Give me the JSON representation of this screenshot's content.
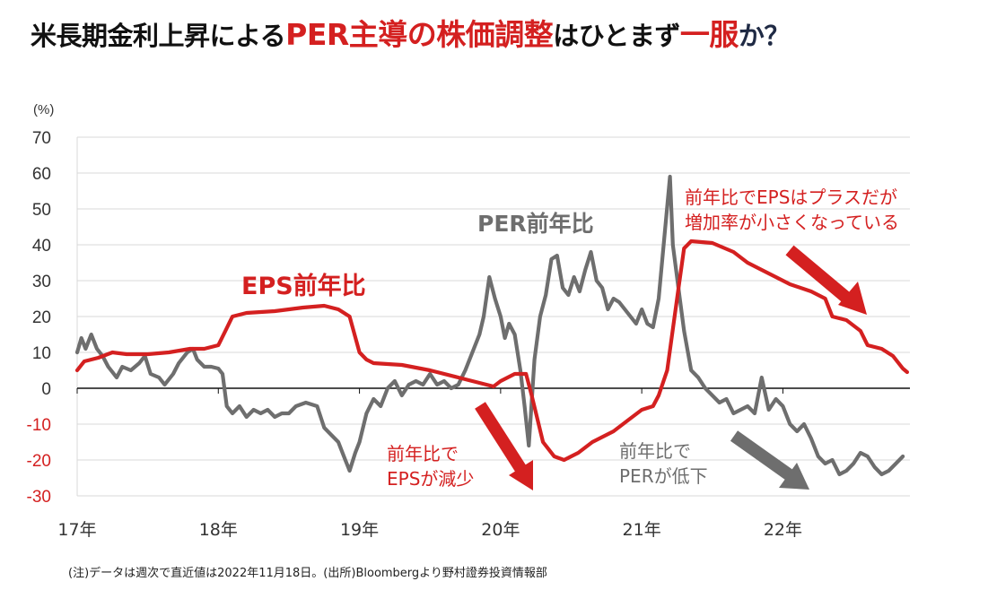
{
  "title": {
    "part1": "米長期金利上昇による",
    "part2": "PER主導の株価調整",
    "part3": "はひとまず",
    "part4": "一服",
    "part5": "か？"
  },
  "footnote": "(注)データは週次で直近値は2022年11月18日。(出所)Bloombergより野村證券投資情報部",
  "colors": {
    "eps": "#d42020",
    "per": "#6e6e6e",
    "negative_tick": "#d42020",
    "grid": "#d9d9d9"
  },
  "chart_data": {
    "type": "line",
    "ylabel": "(%)",
    "ylim": [
      -30,
      70
    ],
    "yticks": [
      "70",
      "60",
      "50",
      "40",
      "30",
      "20",
      "10",
      "0",
      "-10",
      "-20",
      "-30"
    ],
    "xlim": [
      2017.0,
      2022.9
    ],
    "xticks": [
      "17年",
      "18年",
      "19年",
      "20年",
      "21年",
      "22年"
    ],
    "grid": true,
    "series": [
      {
        "name": "EPS前年比",
        "points": [
          [
            2017.0,
            5
          ],
          [
            2017.05,
            7.5
          ],
          [
            2017.15,
            8.5
          ],
          [
            2017.25,
            10
          ],
          [
            2017.35,
            9.5
          ],
          [
            2017.5,
            9.5
          ],
          [
            2017.65,
            10
          ],
          [
            2017.8,
            11
          ],
          [
            2017.9,
            11
          ],
          [
            2018.0,
            12
          ],
          [
            2018.05,
            16
          ],
          [
            2018.1,
            20
          ],
          [
            2018.2,
            21
          ],
          [
            2018.4,
            21.5
          ],
          [
            2018.6,
            22.5
          ],
          [
            2018.75,
            23
          ],
          [
            2018.85,
            22
          ],
          [
            2018.93,
            20
          ],
          [
            2019.0,
            10
          ],
          [
            2019.05,
            8
          ],
          [
            2019.1,
            7
          ],
          [
            2019.3,
            6.5
          ],
          [
            2019.5,
            5
          ],
          [
            2019.7,
            3
          ],
          [
            2019.8,
            2
          ],
          [
            2019.9,
            1
          ],
          [
            2019.95,
            0.5
          ],
          [
            2020.0,
            2
          ],
          [
            2020.1,
            4
          ],
          [
            2020.18,
            4
          ],
          [
            2020.22,
            -2
          ],
          [
            2020.3,
            -15
          ],
          [
            2020.38,
            -19
          ],
          [
            2020.45,
            -20
          ],
          [
            2020.55,
            -18
          ],
          [
            2020.65,
            -15
          ],
          [
            2020.8,
            -12
          ],
          [
            2020.9,
            -9
          ],
          [
            2021.0,
            -6
          ],
          [
            2021.08,
            -5
          ],
          [
            2021.12,
            -2
          ],
          [
            2021.18,
            5
          ],
          [
            2021.25,
            25
          ],
          [
            2021.3,
            39
          ],
          [
            2021.35,
            41
          ],
          [
            2021.5,
            40.5
          ],
          [
            2021.65,
            38
          ],
          [
            2021.75,
            35
          ],
          [
            2021.85,
            33
          ],
          [
            2021.95,
            31
          ],
          [
            2022.05,
            29
          ],
          [
            2022.2,
            27
          ],
          [
            2022.3,
            25
          ],
          [
            2022.35,
            20
          ],
          [
            2022.45,
            19
          ],
          [
            2022.55,
            16
          ],
          [
            2022.6,
            12
          ],
          [
            2022.7,
            11
          ],
          [
            2022.78,
            9
          ],
          [
            2022.85,
            5.5
          ],
          [
            2022.88,
            4.5
          ]
        ]
      },
      {
        "name": "PER前年比",
        "points": [
          [
            2017.0,
            10
          ],
          [
            2017.03,
            14
          ],
          [
            2017.06,
            11
          ],
          [
            2017.1,
            15
          ],
          [
            2017.14,
            11
          ],
          [
            2017.18,
            9
          ],
          [
            2017.22,
            6
          ],
          [
            2017.26,
            4
          ],
          [
            2017.28,
            3
          ],
          [
            2017.32,
            6
          ],
          [
            2017.38,
            5
          ],
          [
            2017.44,
            7
          ],
          [
            2017.48,
            9
          ],
          [
            2017.52,
            4
          ],
          [
            2017.58,
            3
          ],
          [
            2017.62,
            1
          ],
          [
            2017.68,
            4
          ],
          [
            2017.72,
            7
          ],
          [
            2017.78,
            10
          ],
          [
            2017.82,
            11
          ],
          [
            2017.85,
            8
          ],
          [
            2017.9,
            6
          ],
          [
            2017.95,
            6
          ],
          [
            2018.0,
            5.5
          ],
          [
            2018.03,
            4
          ],
          [
            2018.06,
            -5
          ],
          [
            2018.1,
            -7
          ],
          [
            2018.15,
            -5
          ],
          [
            2018.2,
            -8
          ],
          [
            2018.25,
            -6
          ],
          [
            2018.3,
            -7
          ],
          [
            2018.35,
            -6
          ],
          [
            2018.4,
            -8
          ],
          [
            2018.45,
            -7
          ],
          [
            2018.5,
            -7
          ],
          [
            2018.55,
            -5
          ],
          [
            2018.62,
            -4
          ],
          [
            2018.7,
            -5
          ],
          [
            2018.75,
            -11
          ],
          [
            2018.8,
            -13
          ],
          [
            2018.85,
            -15
          ],
          [
            2018.9,
            -20
          ],
          [
            2018.93,
            -23
          ],
          [
            2018.97,
            -18
          ],
          [
            2019.0,
            -15
          ],
          [
            2019.05,
            -7
          ],
          [
            2019.1,
            -3
          ],
          [
            2019.15,
            -5
          ],
          [
            2019.2,
            0
          ],
          [
            2019.25,
            2
          ],
          [
            2019.3,
            -2
          ],
          [
            2019.35,
            1
          ],
          [
            2019.4,
            2
          ],
          [
            2019.45,
            1
          ],
          [
            2019.5,
            4
          ],
          [
            2019.55,
            1
          ],
          [
            2019.6,
            2
          ],
          [
            2019.65,
            0
          ],
          [
            2019.7,
            1
          ],
          [
            2019.75,
            5
          ],
          [
            2019.8,
            10
          ],
          [
            2019.85,
            15
          ],
          [
            2019.88,
            20
          ],
          [
            2019.92,
            31
          ],
          [
            2019.96,
            25
          ],
          [
            2020.0,
            20
          ],
          [
            2020.03,
            14
          ],
          [
            2020.06,
            18
          ],
          [
            2020.1,
            15
          ],
          [
            2020.14,
            5
          ],
          [
            2020.17,
            -5
          ],
          [
            2020.2,
            -16
          ],
          [
            2020.24,
            8
          ],
          [
            2020.28,
            20
          ],
          [
            2020.32,
            26
          ],
          [
            2020.36,
            36
          ],
          [
            2020.4,
            37
          ],
          [
            2020.44,
            28
          ],
          [
            2020.48,
            26
          ],
          [
            2020.52,
            31
          ],
          [
            2020.56,
            27
          ],
          [
            2020.6,
            33
          ],
          [
            2020.64,
            38
          ],
          [
            2020.68,
            30
          ],
          [
            2020.72,
            28
          ],
          [
            2020.76,
            22
          ],
          [
            2020.8,
            25
          ],
          [
            2020.84,
            24
          ],
          [
            2020.88,
            22
          ],
          [
            2020.92,
            20
          ],
          [
            2020.96,
            18
          ],
          [
            2021.0,
            22
          ],
          [
            2021.04,
            18
          ],
          [
            2021.08,
            17
          ],
          [
            2021.12,
            25
          ],
          [
            2021.16,
            42
          ],
          [
            2021.2,
            59
          ],
          [
            2021.22,
            40
          ],
          [
            2021.26,
            28
          ],
          [
            2021.3,
            16
          ],
          [
            2021.35,
            5
          ],
          [
            2021.4,
            3
          ],
          [
            2021.45,
            0
          ],
          [
            2021.5,
            -2
          ],
          [
            2021.55,
            -4
          ],
          [
            2021.6,
            -3
          ],
          [
            2021.65,
            -7
          ],
          [
            2021.7,
            -6
          ],
          [
            2021.75,
            -5
          ],
          [
            2021.8,
            -7
          ],
          [
            2021.85,
            3
          ],
          [
            2021.9,
            -6
          ],
          [
            2021.95,
            -3
          ],
          [
            2022.0,
            -5
          ],
          [
            2022.05,
            -10
          ],
          [
            2022.1,
            -12
          ],
          [
            2022.15,
            -10
          ],
          [
            2022.2,
            -14
          ],
          [
            2022.25,
            -19
          ],
          [
            2022.3,
            -21
          ],
          [
            2022.35,
            -20
          ],
          [
            2022.4,
            -24
          ],
          [
            2022.45,
            -23
          ],
          [
            2022.5,
            -21
          ],
          [
            2022.55,
            -18
          ],
          [
            2022.6,
            -19
          ],
          [
            2022.65,
            -22
          ],
          [
            2022.7,
            -24
          ],
          [
            2022.75,
            -23
          ],
          [
            2022.8,
            -21
          ],
          [
            2022.85,
            -19
          ]
        ]
      }
    ],
    "annotations": {
      "eps_series_label": "EPS前年比",
      "per_series_label": "PER前年比",
      "eps_plus_line1": "前年比でEPSはプラスだが",
      "eps_plus_line2": "増加率が小さくなっている",
      "eps_down_line1": "前年比で",
      "eps_down_line2": "EPSが減少",
      "per_down_line1": "前年比で",
      "per_down_line2": "PERが低下"
    }
  }
}
